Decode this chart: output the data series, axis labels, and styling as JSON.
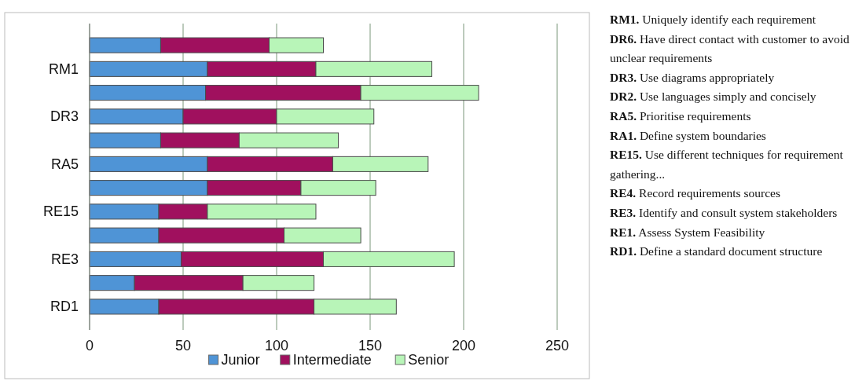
{
  "chart_data": {
    "type": "bar",
    "orientation": "horizontal",
    "stacked": true,
    "categories": [
      null,
      "RM1",
      null,
      "DR3",
      null,
      "RA5",
      null,
      "RE15",
      null,
      "RE3",
      null,
      "RD1"
    ],
    "series": [
      {
        "name": "Junior",
        "color": "#4f94d6",
        "values": [
          38,
          63,
          62,
          50,
          38,
          63,
          63,
          37,
          37,
          49,
          24,
          37
        ]
      },
      {
        "name": "Intermediate",
        "color": "#a0105e",
        "values": [
          58,
          58,
          83,
          50,
          42,
          67,
          50,
          26,
          67,
          76,
          58,
          83
        ]
      },
      {
        "name": "Senior",
        "color": "#b8f5b8",
        "values": [
          29,
          62,
          63,
          52,
          53,
          51,
          40,
          58,
          41,
          70,
          38,
          44
        ]
      }
    ],
    "xlim": [
      0,
      250
    ],
    "xticks": [
      0,
      50,
      100,
      150,
      200,
      250
    ],
    "grid": "x",
    "legend": "bottom",
    "annotations": [
      "RM1. Uniquely identify each requirement",
      "DR6. Have direct contact with customer to avoid unclear requirements",
      "DR3. Use diagrams appropriately",
      "DR2. Use languages simply and concisely",
      "RA5. Prioritise requirements",
      "RA1. Define system boundaries",
      "RE15. Use different techniques for requirement gathering...",
      "RE4. Record requirements sources",
      "RE3. Identify and consult system stakeholders",
      "RE1. Assess System Feasibility",
      "RD1. Define a standard document structure"
    ]
  }
}
